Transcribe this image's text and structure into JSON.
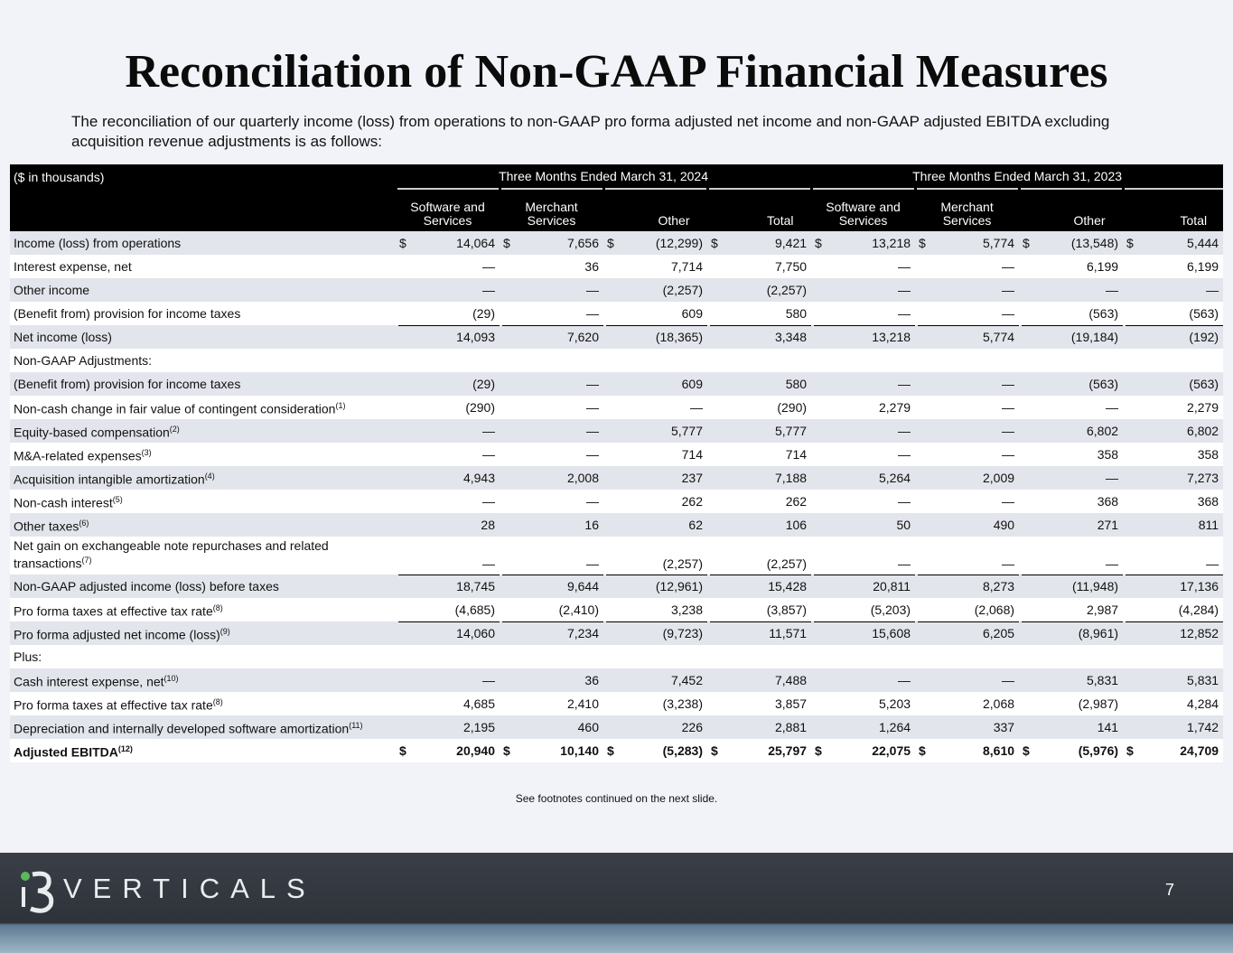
{
  "title": "Reconciliation of Non-GAAP Financial Measures",
  "intro": "The reconciliation of our quarterly income (loss) from operations to non-GAAP pro forma adjusted net income and non-GAAP adjusted EBITDA excluding acquisition revenue adjustments is as follows:",
  "table": {
    "unit_label": "($ in thousands)",
    "periods": [
      "Three Months Ended March 31, 2024",
      "Three Months Ended March 31, 2023"
    ],
    "columns": [
      "Software and Services",
      "Merchant Services",
      "Other",
      "Total",
      "Software and Services",
      "Merchant Services",
      "Other",
      "Total"
    ],
    "rows": [
      {
        "label": "Income (loss) from operations",
        "currency": "$",
        "values": [
          "14,064",
          "7,656",
          "(12,299)",
          "9,421",
          "13,218",
          "5,774",
          "(13,548)",
          "5,444"
        ]
      },
      {
        "label": "Interest expense, net",
        "values": [
          "—",
          "36",
          "7,714",
          "7,750",
          "—",
          "—",
          "6,199",
          "6,199"
        ]
      },
      {
        "label": "Other income",
        "values": [
          "—",
          "—",
          "(2,257)",
          "(2,257)",
          "—",
          "—",
          "—",
          "—"
        ]
      },
      {
        "label": "(Benefit from) provision for income taxes",
        "values": [
          "(29)",
          "—",
          "609",
          "580",
          "—",
          "—",
          "(563)",
          "(563)"
        ]
      },
      {
        "label": "Net income (loss)",
        "values": [
          "14,093",
          "7,620",
          "(18,365)",
          "3,348",
          "13,218",
          "5,774",
          "(19,184)",
          "(192)"
        ]
      },
      {
        "label": "Non-GAAP Adjustments:"
      },
      {
        "label": "(Benefit from) provision for income taxes",
        "values": [
          "(29)",
          "—",
          "609",
          "580",
          "—",
          "—",
          "(563)",
          "(563)"
        ]
      },
      {
        "label": "Non-cash change in fair value of contingent consideration",
        "note": "(1)",
        "values": [
          "(290)",
          "—",
          "—",
          "(290)",
          "2,279",
          "—",
          "—",
          "2,279"
        ]
      },
      {
        "label": "Equity-based compensation",
        "note": "(2)",
        "values": [
          "—",
          "—",
          "5,777",
          "5,777",
          "—",
          "—",
          "6,802",
          "6,802"
        ]
      },
      {
        "label": "M&A-related expenses",
        "note": "(3)",
        "values": [
          "—",
          "—",
          "714",
          "714",
          "—",
          "—",
          "358",
          "358"
        ]
      },
      {
        "label": "Acquisition intangible amortization",
        "note": "(4)",
        "values": [
          "4,943",
          "2,008",
          "237",
          "7,188",
          "5,264",
          "2,009",
          "—",
          "7,273"
        ]
      },
      {
        "label": "Non-cash interest",
        "note": "(5)",
        "values": [
          "—",
          "—",
          "262",
          "262",
          "—",
          "—",
          "368",
          "368"
        ]
      },
      {
        "label": "Other taxes",
        "note": "(6)",
        "values": [
          "28",
          "16",
          "62",
          "106",
          "50",
          "490",
          "271",
          "811"
        ]
      },
      {
        "label": "Net gain on exchangeable note repurchases and related transactions",
        "note": "(7)",
        "values": [
          "—",
          "—",
          "(2,257)",
          "(2,257)",
          "—",
          "—",
          "—",
          "—"
        ]
      },
      {
        "label": "Non-GAAP adjusted income (loss) before taxes",
        "values": [
          "18,745",
          "9,644",
          "(12,961)",
          "15,428",
          "20,811",
          "8,273",
          "(11,948)",
          "17,136"
        ]
      },
      {
        "label": "Pro forma taxes at effective tax rate",
        "note": "(8)",
        "values": [
          "(4,685)",
          "(2,410)",
          "3,238",
          "(3,857)",
          "(5,203)",
          "(2,068)",
          "2,987",
          "(4,284)"
        ]
      },
      {
        "label": "Pro forma adjusted net income (loss)",
        "note": "(9)",
        "values": [
          "14,060",
          "7,234",
          "(9,723)",
          "11,571",
          "15,608",
          "6,205",
          "(8,961)",
          "12,852"
        ]
      },
      {
        "label": "Plus:"
      },
      {
        "label": "Cash interest expense, net",
        "note": "(10)",
        "values": [
          "—",
          "36",
          "7,452",
          "7,488",
          "—",
          "—",
          "5,831",
          "5,831"
        ]
      },
      {
        "label": "Pro forma taxes at effective tax rate",
        "note": "(8)",
        "values": [
          "4,685",
          "2,410",
          "(3,238)",
          "3,857",
          "5,203",
          "2,068",
          "(2,987)",
          "4,284"
        ]
      },
      {
        "label": "Depreciation and internally developed software amortization",
        "note": "(11)",
        "values": [
          "2,195",
          "460",
          "226",
          "2,881",
          "1,264",
          "337",
          "141",
          "1,742"
        ]
      },
      {
        "label": "Adjusted EBITDA",
        "note": "(12)",
        "currency": "$",
        "values": [
          "20,940",
          "10,140",
          "(5,283)",
          "25,797",
          "22,075",
          "8,610",
          "(5,976)",
          "24,709"
        ]
      }
    ]
  },
  "footnote": "See footnotes continued on the next slide.",
  "footer": {
    "brand": "VERTICALS",
    "page_number": "7"
  }
}
